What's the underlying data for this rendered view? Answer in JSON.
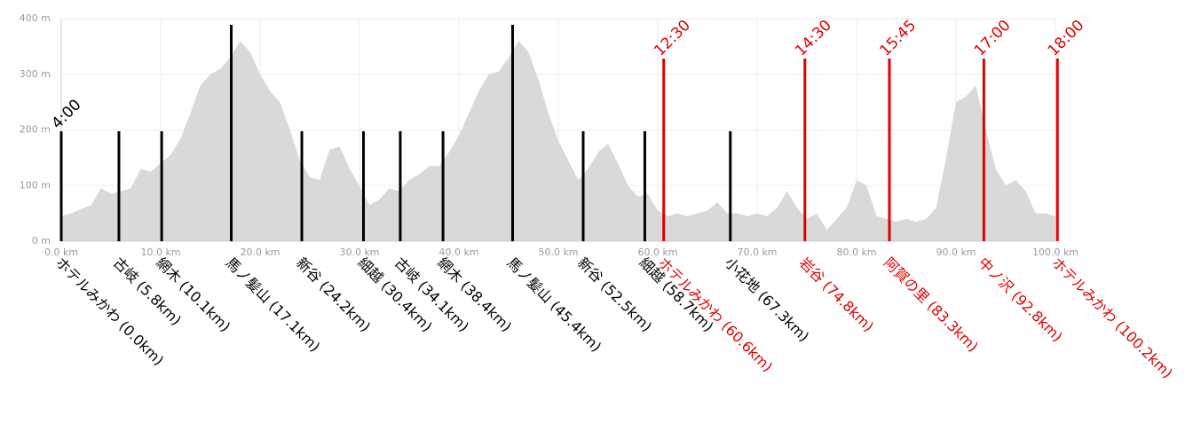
{
  "chart_data": {
    "type": "elevation-profile",
    "xlim": [
      0,
      100
    ],
    "ylim": [
      0,
      400
    ],
    "xticks": [
      {
        "value": 0,
        "label": "0.0 km"
      },
      {
        "value": 10,
        "label": "10.0 km"
      },
      {
        "value": 20,
        "label": "20.0 km"
      },
      {
        "value": 30,
        "label": "30.0 km"
      },
      {
        "value": 40,
        "label": "40.0 km"
      },
      {
        "value": 50,
        "label": "50.0 km"
      },
      {
        "value": 60,
        "label": "60.0 km"
      },
      {
        "value": 70,
        "label": "70.0 km"
      },
      {
        "value": 80,
        "label": "80.0 km"
      },
      {
        "value": 90,
        "label": "90.0 km"
      },
      {
        "value": 100,
        "label": "100.0 km"
      }
    ],
    "yticks": [
      {
        "value": 0,
        "label": "0 m"
      },
      {
        "value": 100,
        "label": "100 m"
      },
      {
        "value": 200,
        "label": "200 m"
      },
      {
        "value": 300,
        "label": "300 m"
      },
      {
        "value": 400,
        "label": "400 m"
      }
    ],
    "grid": true,
    "color": "#d9d9d9",
    "x": [
      0,
      1,
      2,
      3,
      4,
      5,
      6,
      7,
      8,
      9,
      10,
      11,
      12,
      13,
      14,
      15,
      16,
      17,
      18,
      19,
      20,
      21,
      22,
      23,
      24,
      25,
      26,
      27,
      28,
      29,
      30,
      31,
      32,
      33,
      34,
      35,
      36,
      37,
      38,
      39,
      40,
      41,
      42,
      43,
      44,
      45,
      46,
      47,
      48,
      49,
      50,
      51,
      52,
      53,
      54,
      55,
      56,
      57,
      58,
      59,
      60,
      61,
      62,
      63,
      64,
      65,
      66,
      67,
      68,
      69,
      70,
      71,
      72,
      73,
      74,
      75,
      76,
      77,
      78,
      79,
      80,
      81,
      82,
      83,
      84,
      85,
      86,
      87,
      88,
      89,
      90,
      91,
      92,
      93,
      94,
      95,
      96,
      97,
      98,
      99,
      100
    ],
    "values": [
      45,
      50,
      58,
      65,
      95,
      85,
      90,
      95,
      130,
      125,
      140,
      155,
      185,
      230,
      280,
      300,
      310,
      330,
      360,
      340,
      300,
      270,
      250,
      200,
      145,
      115,
      110,
      165,
      170,
      130,
      100,
      65,
      75,
      95,
      90,
      110,
      120,
      135,
      135,
      160,
      190,
      230,
      270,
      300,
      305,
      330,
      360,
      340,
      290,
      230,
      180,
      145,
      110,
      130,
      160,
      175,
      140,
      100,
      80,
      85,
      55,
      45,
      50,
      45,
      50,
      55,
      70,
      50,
      50,
      45,
      50,
      45,
      60,
      90,
      60,
      40,
      50,
      20,
      40,
      60,
      110,
      100,
      45,
      40,
      35,
      40,
      35,
      40,
      60,
      150,
      250,
      260,
      280,
      200,
      130,
      100,
      110,
      90,
      50,
      50,
      45
    ],
    "markers": [
      {
        "label": "ホテルみかわ (0.0km)",
        "km": 0.0,
        "color": "#000000",
        "time": "4:00"
      },
      {
        "label": "古岐 (5.8km)",
        "km": 5.8,
        "color": "#000000"
      },
      {
        "label": "網木 (10.1km)",
        "km": 10.1,
        "color": "#000000"
      },
      {
        "label": "馬ノ髪山 (17.1km)",
        "km": 17.1,
        "color": "#000000"
      },
      {
        "label": "新谷 (24.2km)",
        "km": 24.2,
        "color": "#000000"
      },
      {
        "label": "細越 (30.4km)",
        "km": 30.4,
        "color": "#000000"
      },
      {
        "label": "古岐 (34.1km)",
        "km": 34.1,
        "color": "#000000"
      },
      {
        "label": "網木 (38.4km)",
        "km": 38.4,
        "color": "#000000"
      },
      {
        "label": "馬ノ髪山 (45.4km)",
        "km": 45.4,
        "color": "#000000"
      },
      {
        "label": "新谷 (52.5km)",
        "km": 52.5,
        "color": "#000000"
      },
      {
        "label": "細越 (58.7km)",
        "km": 58.7,
        "color": "#000000"
      },
      {
        "label": "ホテルみかわ (60.6km)",
        "km": 60.6,
        "color": "#e00000",
        "time": "12:30"
      },
      {
        "label": "小花地 (67.3km)",
        "km": 67.3,
        "color": "#000000"
      },
      {
        "label": "岩谷 (74.8km)",
        "km": 74.8,
        "color": "#e00000",
        "time": "14:30"
      },
      {
        "label": "阿賀の里 (83.3km)",
        "km": 83.3,
        "color": "#e00000",
        "time": "15:45"
      },
      {
        "label": "中ノ沢 (92.8km)",
        "km": 92.8,
        "color": "#e00000",
        "time": "17:00"
      },
      {
        "label": "ホテルみかわ (100.2km)",
        "km": 100.2,
        "color": "#e00000",
        "time": "18:00"
      }
    ]
  }
}
